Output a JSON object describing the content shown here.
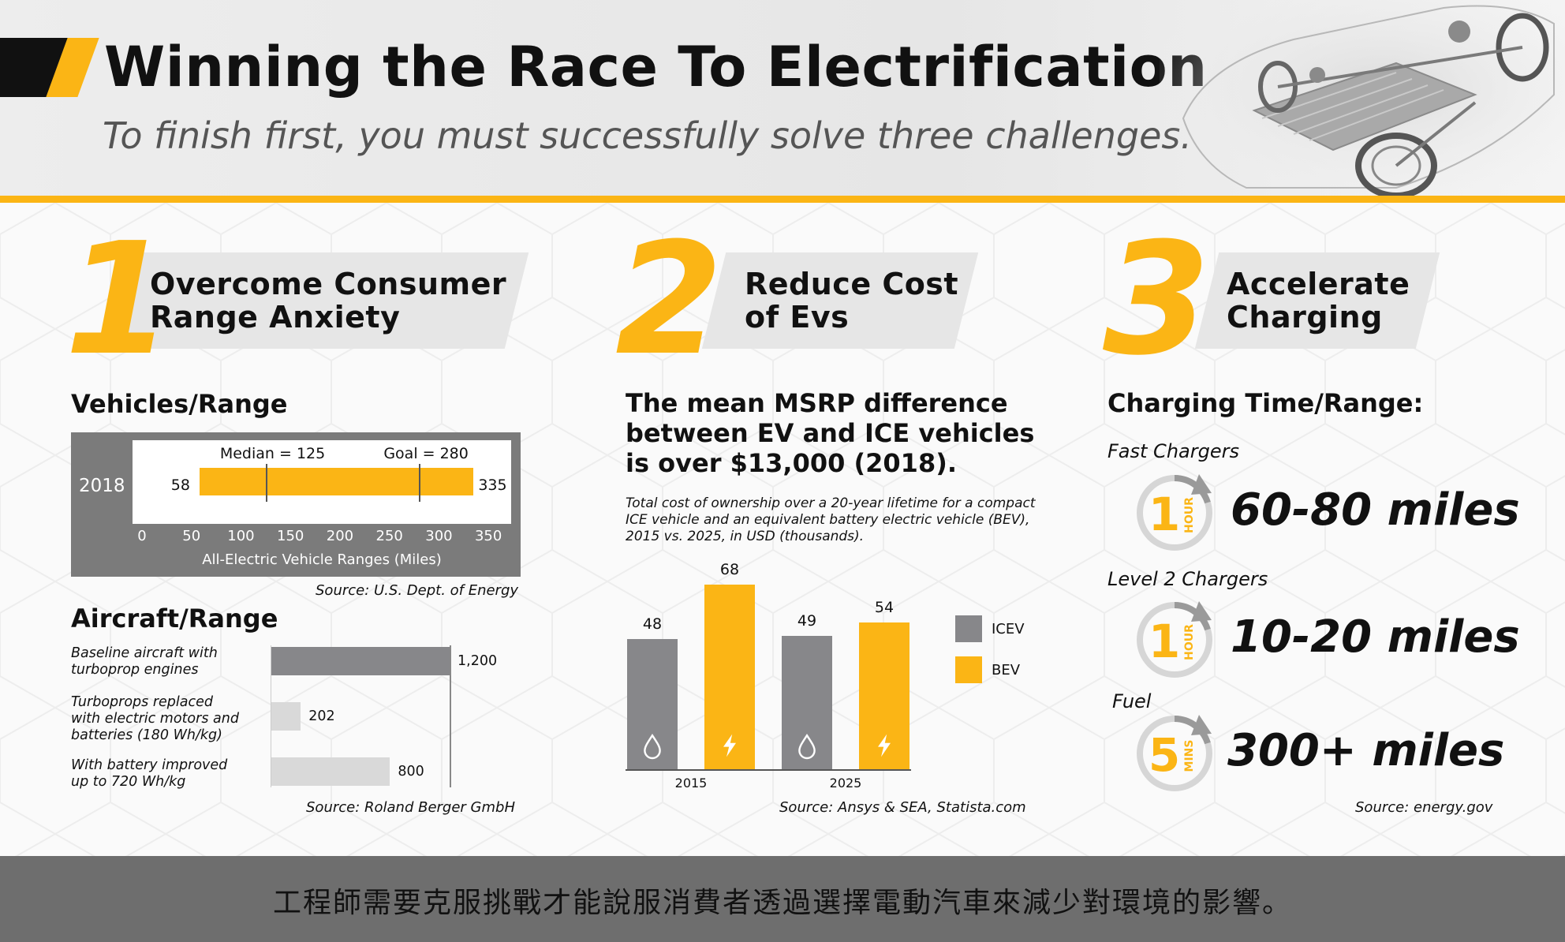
{
  "header": {
    "title": "Winning the Race To Electrification",
    "subtitle": "To finish first, you must successfully solve three challenges."
  },
  "sections": [
    {
      "number": "1",
      "title_line1": "Overcome Consumer",
      "title_line2": "Range Anxiety"
    },
    {
      "number": "2",
      "title_line1": "Reduce Cost",
      "title_line2": "of Evs"
    },
    {
      "number": "3",
      "title_line1": "Accelerate",
      "title_line2": "Charging"
    }
  ],
  "vehicles": {
    "heading": "Vehicles/Range",
    "source": "Source: U.S. Dept. of Energy"
  },
  "aircraft": {
    "heading": "Aircraft/Range",
    "source": "Source: Roland Berger GmbH"
  },
  "msrp": {
    "heading": "The mean MSRP difference between EV and ICE vehicles is over $13,000 (2018).",
    "note": "Total cost of ownership over a 20-year lifetime for a compact ICE vehicle and an equivalent battery electric vehicle (BEV), 2015 vs. 2025, in USD (thousands).",
    "source": "Source: Ansys & SEA, Statista.com"
  },
  "charging": {
    "heading": "Charging Time/Range:",
    "source": "Source: energy.gov",
    "items": [
      {
        "label": "Fast Chargers",
        "clock_number": "1",
        "clock_unit": "HOUR",
        "value": "60-80 miles"
      },
      {
        "label": "Level 2 Chargers",
        "clock_number": "1",
        "clock_unit": "HOUR",
        "value": "10-20 miles"
      },
      {
        "label": "Fuel",
        "clock_number": "5",
        "clock_unit": "MINS",
        "value": "300+ miles"
      }
    ]
  },
  "footer": {
    "text": "工程師需要克服挑戰才能說服消費者透過選擇電動汽車來減少對環境的影響。"
  },
  "colors": {
    "accent": "#fbb515",
    "gray_bar": "#87878a",
    "light_bar": "#d9d9d9",
    "box_gray": "#7b7b7b"
  },
  "chart_data": [
    {
      "type": "bar",
      "orientation": "horizontal",
      "categories": [
        "2018"
      ],
      "range_min": 58,
      "range_max": 335,
      "range_min_label": "58",
      "range_max_label": "335",
      "median": 125,
      "median_label": "Median = 125",
      "goal": 280,
      "goal_label": "Goal = 280",
      "xlabel": "All-Electric Vehicle Ranges (Miles)",
      "xlim": [
        0,
        365
      ],
      "xticks": [
        "0",
        "50",
        "100",
        "150",
        "200",
        "250",
        "300",
        "350"
      ],
      "xtick_values": [
        0,
        50,
        100,
        150,
        200,
        250,
        300,
        350
      ]
    },
    {
      "type": "bar",
      "orientation": "horizontal",
      "categories": [
        "Baseline aircraft with turboprop engines",
        "Turboprops replaced with electric motors and batteries (180 Wh/kg)",
        "With battery improved up to 720 Wh/kg"
      ],
      "category_lines": [
        [
          "Baseline aircraft with",
          "turboprop engines"
        ],
        [
          "Turboprops replaced",
          "with electric motors and",
          "batteries (180 Wh/kg)"
        ],
        [
          "With battery improved",
          "up to 720 Wh/kg"
        ]
      ],
      "values": [
        1200,
        202,
        800
      ],
      "value_labels": [
        "1,200",
        "202",
        "800"
      ],
      "xlim": [
        0,
        1200
      ]
    },
    {
      "type": "bar",
      "categories": [
        "2015",
        "2025"
      ],
      "series": [
        {
          "name": "ICEV",
          "values": [
            48,
            49
          ]
        },
        {
          "name": "BEV",
          "values": [
            68,
            54
          ]
        }
      ],
      "ylim": [
        0,
        68
      ]
    }
  ]
}
